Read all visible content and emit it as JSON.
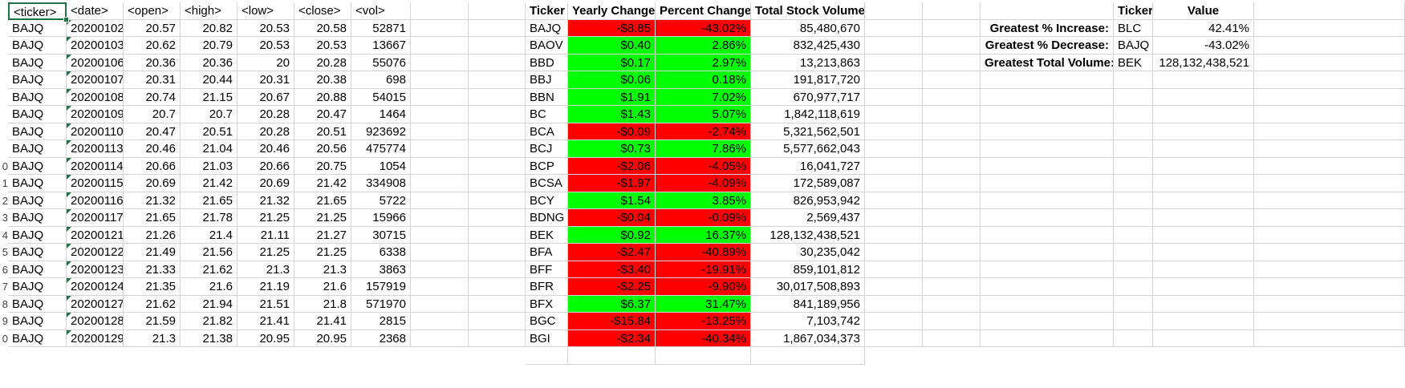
{
  "colors": {
    "positive": "#00ff00",
    "negative": "#ff0000",
    "selection": "#217346",
    "gridline": "#d4d4d4"
  },
  "raw": {
    "headers": [
      "<ticker>",
      "<date>",
      "<open>",
      "<high>",
      "<low>",
      "<close>",
      "<vol>"
    ],
    "rows": [
      [
        "BAJQ",
        "20200102",
        "20.57",
        "20.82",
        "20.53",
        "20.58",
        "52871"
      ],
      [
        "BAJQ",
        "20200103",
        "20.62",
        "20.79",
        "20.53",
        "20.53",
        "13667"
      ],
      [
        "BAJQ",
        "20200106",
        "20.36",
        "20.36",
        "20",
        "20.28",
        "55076"
      ],
      [
        "BAJQ",
        "20200107",
        "20.31",
        "20.44",
        "20.31",
        "20.38",
        "698"
      ],
      [
        "BAJQ",
        "20200108",
        "20.74",
        "21.15",
        "20.67",
        "20.88",
        "54015"
      ],
      [
        "BAJQ",
        "20200109",
        "20.7",
        "20.7",
        "20.28",
        "20.47",
        "1464"
      ],
      [
        "BAJQ",
        "20200110",
        "20.47",
        "20.51",
        "20.28",
        "20.51",
        "923692"
      ],
      [
        "BAJQ",
        "20200113",
        "20.46",
        "21.04",
        "20.46",
        "20.56",
        "475774"
      ],
      [
        "BAJQ",
        "20200114",
        "20.66",
        "21.03",
        "20.66",
        "20.75",
        "1054"
      ],
      [
        "BAJQ",
        "20200115",
        "20.69",
        "21.42",
        "20.69",
        "21.42",
        "334908"
      ],
      [
        "BAJQ",
        "20200116",
        "21.32",
        "21.65",
        "21.32",
        "21.65",
        "5722"
      ],
      [
        "BAJQ",
        "20200117",
        "21.65",
        "21.78",
        "21.25",
        "21.25",
        "15966"
      ],
      [
        "BAJQ",
        "20200121",
        "21.26",
        "21.4",
        "21.11",
        "21.27",
        "30715"
      ],
      [
        "BAJQ",
        "20200122",
        "21.49",
        "21.56",
        "21.25",
        "21.25",
        "6338"
      ],
      [
        "BAJQ",
        "20200123",
        "21.33",
        "21.62",
        "21.3",
        "21.3",
        "3863"
      ],
      [
        "BAJQ",
        "20200124",
        "21.35",
        "21.6",
        "21.19",
        "21.6",
        "157919"
      ],
      [
        "BAJQ",
        "20200127",
        "21.62",
        "21.94",
        "21.51",
        "21.8",
        "571970"
      ],
      [
        "BAJQ",
        "20200128",
        "21.59",
        "21.82",
        "21.41",
        "21.41",
        "2815"
      ],
      [
        "BAJQ",
        "20200129",
        "21.3",
        "21.38",
        "20.95",
        "20.95",
        "2368"
      ]
    ]
  },
  "row_numbers": [
    "",
    "",
    "",
    "",
    "",
    "",
    "",
    "",
    "",
    "0",
    "1",
    "2",
    "3",
    "4",
    "5",
    "6",
    "7",
    "8",
    "9",
    "0"
  ],
  "summary": {
    "headers": [
      "Ticker",
      "Yearly Change",
      "Percent Change",
      "Total Stock Volume"
    ],
    "rows": [
      {
        "ticker": "BAJQ",
        "change": "-$8.85",
        "percent": "-43.02%",
        "volume": "85,480,670",
        "status": "negative"
      },
      {
        "ticker": "BAOV",
        "change": "$0.40",
        "percent": "2.86%",
        "volume": "832,425,430",
        "status": "positive"
      },
      {
        "ticker": "BBD",
        "change": "$0.17",
        "percent": "2.97%",
        "volume": "13,213,863",
        "status": "positive"
      },
      {
        "ticker": "BBJ",
        "change": "$0.06",
        "percent": "0.18%",
        "volume": "191,817,720",
        "status": "positive"
      },
      {
        "ticker": "BBN",
        "change": "$1.91",
        "percent": "7.02%",
        "volume": "670,977,717",
        "status": "positive"
      },
      {
        "ticker": "BC",
        "change": "$1.43",
        "percent": "5.07%",
        "volume": "1,842,118,619",
        "status": "positive"
      },
      {
        "ticker": "BCA",
        "change": "-$0.09",
        "percent": "-2.74%",
        "volume": "5,321,562,501",
        "status": "negative"
      },
      {
        "ticker": "BCJ",
        "change": "$0.73",
        "percent": "7.86%",
        "volume": "5,577,662,043",
        "status": "positive"
      },
      {
        "ticker": "BCP",
        "change": "-$2.06",
        "percent": "-4.05%",
        "volume": "16,041,727",
        "status": "negative"
      },
      {
        "ticker": "BCSA",
        "change": "-$1.97",
        "percent": "-4.09%",
        "volume": "172,589,087",
        "status": "negative"
      },
      {
        "ticker": "BCY",
        "change": "$1.54",
        "percent": "3.85%",
        "volume": "826,953,942",
        "status": "positive"
      },
      {
        "ticker": "BDNG",
        "change": "-$0.04",
        "percent": "-0.09%",
        "volume": "2,569,437",
        "status": "negative"
      },
      {
        "ticker": "BEK",
        "change": "$0.92",
        "percent": "16.37%",
        "volume": "128,132,438,521",
        "status": "positive"
      },
      {
        "ticker": "BFA",
        "change": "-$2.47",
        "percent": "-40.89%",
        "volume": "30,235,042",
        "status": "negative"
      },
      {
        "ticker": "BFF",
        "change": "-$3.40",
        "percent": "-19.91%",
        "volume": "859,101,812",
        "status": "negative"
      },
      {
        "ticker": "BFR",
        "change": "-$2.25",
        "percent": "-9.90%",
        "volume": "30,017,508,893",
        "status": "negative"
      },
      {
        "ticker": "BFX",
        "change": "$6.37",
        "percent": "31.47%",
        "volume": "841,189,956",
        "status": "positive"
      },
      {
        "ticker": "BGC",
        "change": "-$15.84",
        "percent": "-13.25%",
        "volume": "7,103,742",
        "status": "negative"
      },
      {
        "ticker": "BGI",
        "change": "-$2.34",
        "percent": "-40.34%",
        "volume": "1,867,034,373",
        "status": "negative"
      }
    ]
  },
  "greatest": {
    "headers": [
      "Ticker",
      "Value"
    ],
    "rows": [
      {
        "label": "Greatest % Increase:",
        "ticker": "BLC",
        "value": "42.41%"
      },
      {
        "label": "Greatest % Decrease:",
        "ticker": "BAJQ",
        "value": "-43.02%"
      },
      {
        "label": "Greatest Total Volume:",
        "ticker": "BEK",
        "value": "128,132,438,521"
      }
    ]
  }
}
